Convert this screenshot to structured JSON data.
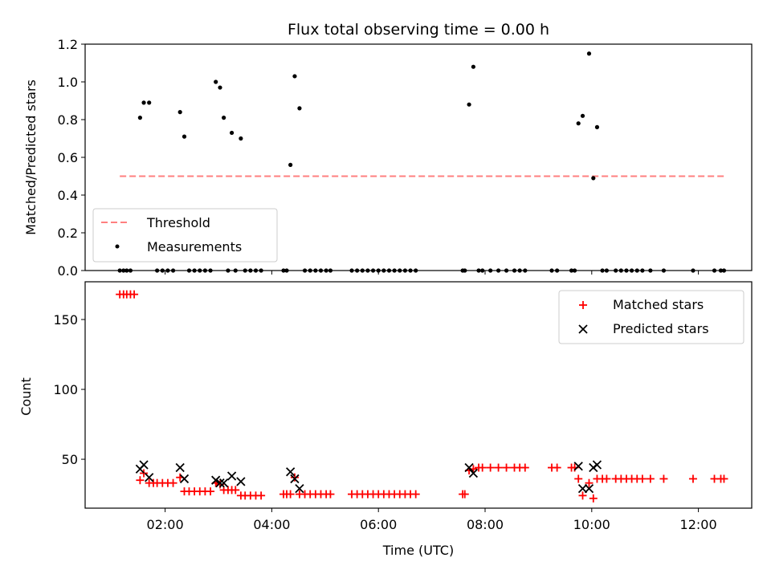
{
  "title": "Flux total observing time = 0.00 h",
  "colors": {
    "threshold": "#ff7f7f",
    "measurement": "#000000",
    "matched": "#ff0000",
    "predicted": "#000000"
  },
  "chart_data": [
    {
      "type": "scatter",
      "panel": "top",
      "ylabel": "Matched/Predicted stars",
      "xlabel": "",
      "ylim": [
        0,
        1.2
      ],
      "yticks": [
        0.0,
        0.2,
        0.4,
        0.6,
        0.8,
        1.0,
        1.2
      ],
      "ytick_labels": [
        "0.0",
        "0.2",
        "0.4",
        "0.6",
        "0.8",
        "1.0",
        "1.2"
      ],
      "xlim_hours": [
        0.5,
        13.0
      ],
      "legend": {
        "position": "lower-left",
        "entries": [
          "Threshold",
          "Measurements"
        ]
      },
      "threshold": {
        "name": "Threshold",
        "y": 0.5,
        "x_range_hours": [
          1.15,
          12.5
        ]
      },
      "series": [
        {
          "name": "Measurements",
          "points": [
            [
              1.53,
              0.81
            ],
            [
              1.6,
              0.89
            ],
            [
              1.7,
              0.89
            ],
            [
              2.28,
              0.84
            ],
            [
              2.36,
              0.71
            ],
            [
              2.95,
              1.0
            ],
            [
              3.03,
              0.97
            ],
            [
              3.1,
              0.81
            ],
            [
              3.25,
              0.73
            ],
            [
              3.42,
              0.7
            ],
            [
              4.35,
              0.56
            ],
            [
              4.43,
              1.03
            ],
            [
              4.52,
              0.86
            ],
            [
              7.7,
              0.88
            ],
            [
              7.78,
              1.08
            ],
            [
              9.75,
              0.78
            ],
            [
              9.83,
              0.82
            ],
            [
              9.95,
              1.15
            ],
            [
              10.03,
              0.49
            ],
            [
              10.1,
              0.76
            ],
            [
              1.15,
              0
            ],
            [
              1.22,
              0
            ],
            [
              1.28,
              0
            ],
            [
              1.35,
              0
            ],
            [
              1.85,
              0
            ],
            [
              1.95,
              0
            ],
            [
              2.05,
              0
            ],
            [
              2.15,
              0
            ],
            [
              2.45,
              0
            ],
            [
              2.55,
              0
            ],
            [
              2.65,
              0
            ],
            [
              2.75,
              0
            ],
            [
              2.85,
              0
            ],
            [
              3.18,
              0
            ],
            [
              3.32,
              0
            ],
            [
              3.5,
              0
            ],
            [
              3.6,
              0
            ],
            [
              3.7,
              0
            ],
            [
              3.8,
              0
            ],
            [
              4.22,
              0
            ],
            [
              4.28,
              0
            ],
            [
              4.62,
              0
            ],
            [
              4.72,
              0
            ],
            [
              4.82,
              0
            ],
            [
              4.92,
              0
            ],
            [
              5.02,
              0
            ],
            [
              5.1,
              0
            ],
            [
              5.5,
              0
            ],
            [
              5.6,
              0
            ],
            [
              5.7,
              0
            ],
            [
              5.8,
              0
            ],
            [
              5.9,
              0
            ],
            [
              6.0,
              0
            ],
            [
              6.1,
              0
            ],
            [
              6.2,
              0
            ],
            [
              6.3,
              0
            ],
            [
              6.4,
              0
            ],
            [
              6.5,
              0
            ],
            [
              6.6,
              0
            ],
            [
              6.7,
              0
            ],
            [
              7.58,
              0
            ],
            [
              7.62,
              0
            ],
            [
              7.88,
              0
            ],
            [
              7.95,
              0
            ],
            [
              8.1,
              0
            ],
            [
              8.25,
              0
            ],
            [
              8.4,
              0
            ],
            [
              8.55,
              0
            ],
            [
              8.65,
              0
            ],
            [
              8.75,
              0
            ],
            [
              9.25,
              0
            ],
            [
              9.35,
              0
            ],
            [
              9.62,
              0
            ],
            [
              9.68,
              0
            ],
            [
              10.2,
              0
            ],
            [
              10.28,
              0
            ],
            [
              10.45,
              0
            ],
            [
              10.55,
              0
            ],
            [
              10.65,
              0
            ],
            [
              10.75,
              0
            ],
            [
              10.85,
              0
            ],
            [
              10.95,
              0
            ],
            [
              11.1,
              0
            ],
            [
              11.35,
              0
            ],
            [
              11.9,
              0
            ],
            [
              12.3,
              0
            ],
            [
              12.42,
              0
            ],
            [
              12.48,
              0
            ]
          ]
        }
      ]
    },
    {
      "type": "scatter",
      "panel": "bottom",
      "ylabel": "Count",
      "xlabel": "Time (UTC)",
      "ylim": [
        15,
        177
      ],
      "yticks": [
        50,
        100,
        150
      ],
      "ytick_labels": [
        "50",
        "100",
        "150"
      ],
      "xlim_hours": [
        0.5,
        13.0
      ],
      "xticks_hours": [
        2,
        4,
        6,
        8,
        10,
        12
      ],
      "xtick_labels": [
        "02:00",
        "04:00",
        "06:00",
        "08:00",
        "10:00",
        "12:00"
      ],
      "legend": {
        "position": "top-right",
        "entries": [
          "Matched stars",
          "Predicted stars"
        ]
      },
      "series": [
        {
          "name": "Matched stars",
          "marker": "plus",
          "points": [
            [
              1.15,
              168
            ],
            [
              1.22,
              168
            ],
            [
              1.28,
              168
            ],
            [
              1.35,
              168
            ],
            [
              1.42,
              168
            ],
            [
              1.53,
              35
            ],
            [
              1.6,
              40
            ],
            [
              1.7,
              33
            ],
            [
              1.78,
              33
            ],
            [
              1.85,
              33
            ],
            [
              1.95,
              33
            ],
            [
              2.05,
              33
            ],
            [
              2.15,
              33
            ],
            [
              2.28,
              37
            ],
            [
              2.36,
              27
            ],
            [
              2.45,
              27
            ],
            [
              2.55,
              27
            ],
            [
              2.65,
              27
            ],
            [
              2.75,
              27
            ],
            [
              2.85,
              27
            ],
            [
              2.95,
              33
            ],
            [
              3.03,
              32
            ],
            [
              3.1,
              28
            ],
            [
              3.18,
              28
            ],
            [
              3.25,
              28
            ],
            [
              3.32,
              28
            ],
            [
              3.42,
              24
            ],
            [
              3.5,
              24
            ],
            [
              3.6,
              24
            ],
            [
              3.7,
              24
            ],
            [
              3.8,
              24
            ],
            [
              4.22,
              25
            ],
            [
              4.28,
              25
            ],
            [
              4.35,
              25
            ],
            [
              4.43,
              37
            ],
            [
              4.52,
              25
            ],
            [
              4.62,
              25
            ],
            [
              4.72,
              25
            ],
            [
              4.82,
              25
            ],
            [
              4.92,
              25
            ],
            [
              5.02,
              25
            ],
            [
              5.1,
              25
            ],
            [
              5.5,
              25
            ],
            [
              5.6,
              25
            ],
            [
              5.7,
              25
            ],
            [
              5.8,
              25
            ],
            [
              5.9,
              25
            ],
            [
              6.0,
              25
            ],
            [
              6.1,
              25
            ],
            [
              6.2,
              25
            ],
            [
              6.3,
              25
            ],
            [
              6.4,
              25
            ],
            [
              6.5,
              25
            ],
            [
              6.6,
              25
            ],
            [
              6.7,
              25
            ],
            [
              7.58,
              25
            ],
            [
              7.62,
              25
            ],
            [
              7.7,
              42
            ],
            [
              7.78,
              43
            ],
            [
              7.88,
              44
            ],
            [
              7.95,
              44
            ],
            [
              8.1,
              44
            ],
            [
              8.25,
              44
            ],
            [
              8.4,
              44
            ],
            [
              8.55,
              44
            ],
            [
              8.65,
              44
            ],
            [
              8.75,
              44
            ],
            [
              9.25,
              44
            ],
            [
              9.35,
              44
            ],
            [
              9.62,
              44
            ],
            [
              9.68,
              44
            ],
            [
              9.75,
              36
            ],
            [
              9.83,
              24
            ],
            [
              9.95,
              33
            ],
            [
              10.03,
              22
            ],
            [
              10.1,
              36
            ],
            [
              10.2,
              36
            ],
            [
              10.28,
              36
            ],
            [
              10.45,
              36
            ],
            [
              10.55,
              36
            ],
            [
              10.65,
              36
            ],
            [
              10.75,
              36
            ],
            [
              10.85,
              36
            ],
            [
              10.95,
              36
            ],
            [
              11.1,
              36
            ],
            [
              11.35,
              36
            ],
            [
              11.9,
              36
            ],
            [
              12.3,
              36
            ],
            [
              12.42,
              36
            ],
            [
              12.48,
              36
            ]
          ]
        },
        {
          "name": "Predicted stars",
          "marker": "x",
          "points": [
            [
              1.53,
              43
            ],
            [
              1.6,
              46
            ],
            [
              1.7,
              37
            ],
            [
              2.28,
              44
            ],
            [
              2.36,
              36
            ],
            [
              2.95,
              35
            ],
            [
              3.03,
              33
            ],
            [
              3.1,
              33
            ],
            [
              3.25,
              38
            ],
            [
              3.42,
              34
            ],
            [
              4.35,
              41
            ],
            [
              4.43,
              36
            ],
            [
              4.52,
              29
            ],
            [
              7.7,
              44
            ],
            [
              7.78,
              40
            ],
            [
              9.75,
              45
            ],
            [
              9.83,
              29
            ],
            [
              9.95,
              29
            ],
            [
              10.03,
              44
            ],
            [
              10.1,
              46
            ]
          ]
        }
      ]
    }
  ]
}
